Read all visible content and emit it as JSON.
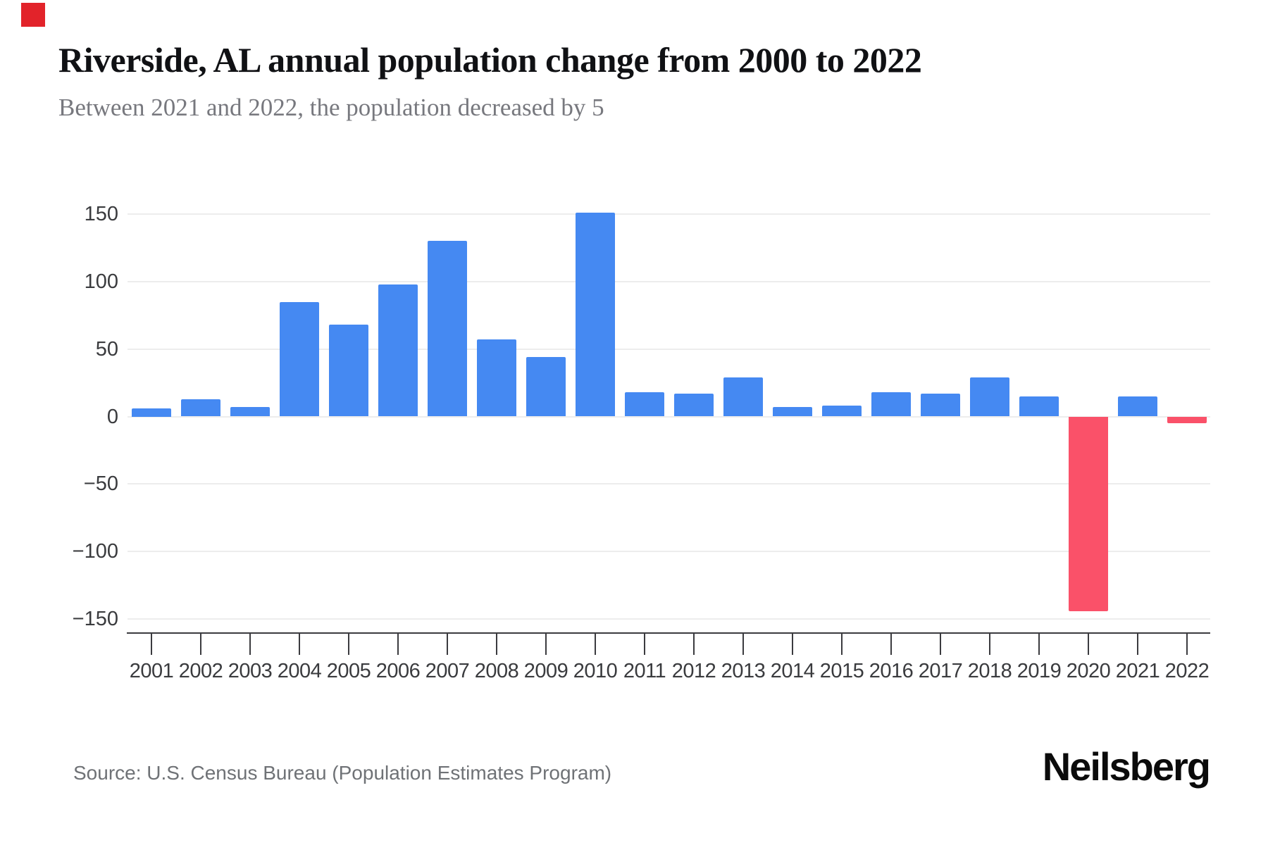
{
  "header": {
    "title": "Riverside, AL annual population change from 2000 to 2022",
    "subtitle": "Between 2021 and 2022, the population decreased by 5"
  },
  "footer": {
    "source": "Source: U.S. Census Bureau (Population Estimates Program)",
    "brand": "Neilsberg"
  },
  "colors": {
    "positive_bar": "#4589F2",
    "negative_bar": "#FA5169",
    "brand_mark": "#E2232A",
    "axis": "#3B3B3F",
    "gridline": "#EDEDED"
  },
  "chart_data": {
    "type": "bar",
    "title": "Riverside, AL annual population change from 2000 to 2022",
    "subtitle": "Between 2021 and 2022, the population decreased by 5",
    "categories": [
      "2001",
      "2002",
      "2003",
      "2004",
      "2005",
      "2006",
      "2007",
      "2008",
      "2009",
      "2010",
      "2011",
      "2012",
      "2013",
      "2014",
      "2015",
      "2016",
      "2017",
      "2018",
      "2019",
      "2020",
      "2021",
      "2022"
    ],
    "values": [
      6,
      13,
      7,
      85,
      68,
      98,
      130,
      57,
      44,
      151,
      18,
      17,
      29,
      7,
      8,
      18,
      17,
      29,
      15,
      -144,
      15,
      -5
    ],
    "xlabel": "",
    "ylabel": "",
    "ylim": [
      -150,
      150
    ],
    "yticks": [
      {
        "value": 150,
        "label": "150"
      },
      {
        "value": 100,
        "label": "100"
      },
      {
        "value": 50,
        "label": "50"
      },
      {
        "value": 0,
        "label": "0"
      },
      {
        "value": -50,
        "label": "−50"
      },
      {
        "value": -100,
        "label": "−100"
      },
      {
        "value": -150,
        "label": "−150"
      }
    ],
    "grid": true,
    "legend": false
  }
}
